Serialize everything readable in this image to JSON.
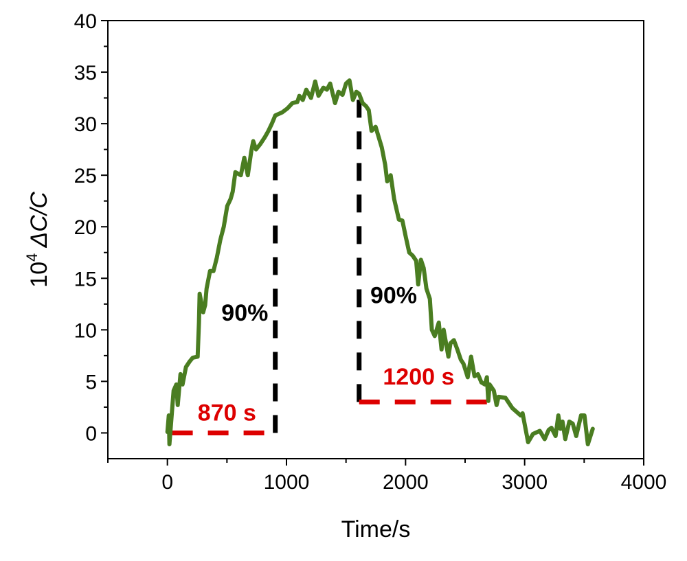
{
  "chart_data": {
    "type": "line",
    "title": "",
    "xlabel": "Time/s",
    "ylabel_prefix": "10",
    "ylabel_exp": "4",
    "ylabel_main": " ΔC/C",
    "xlim": [
      -500,
      4000
    ],
    "ylim": [
      -2.5,
      40
    ],
    "xticks": [
      0,
      1000,
      2000,
      3000,
      4000
    ],
    "xticks_minor": [
      -500,
      500,
      1500,
      2500,
      3500
    ],
    "yticks": [
      0,
      5,
      10,
      15,
      20,
      25,
      30,
      35,
      40
    ],
    "yticks_minor": [
      2.5,
      7.5,
      12.5,
      17.5,
      22.5,
      27.5,
      32.5,
      37.5
    ],
    "grid": false,
    "series": [
      {
        "name": "response",
        "color": "#4a7d21",
        "x": [
          0,
          12,
          17,
          52,
          75,
          87,
          110,
          127,
          156,
          185,
          213,
          254,
          265,
          271,
          300,
          317,
          329,
          358,
          387,
          415,
          444,
          473,
          502,
          531,
          548,
          571,
          617,
          646,
          675,
          704,
          721,
          744,
          779,
          819,
          848,
          877,
          906,
          964,
          1010,
          1050,
          1091,
          1108,
          1137,
          1166,
          1206,
          1241,
          1269,
          1310,
          1339,
          1367,
          1408,
          1437,
          1471,
          1500,
          1529,
          1558,
          1587,
          1610,
          1639,
          1668,
          1691,
          1714,
          1748,
          1800,
          1829,
          1846,
          1875,
          1904,
          1944,
          1973,
          2002,
          2031,
          2060,
          2089,
          2106,
          2129,
          2152,
          2175,
          2204,
          2221,
          2245,
          2279,
          2302,
          2320,
          2360,
          2377,
          2406,
          2435,
          2464,
          2487,
          2522,
          2550,
          2579,
          2608,
          2637,
          2666,
          2683,
          2695,
          2706,
          2741,
          2764,
          2781,
          2839,
          2897,
          2966,
          2983,
          3029,
          3070,
          3127,
          3168,
          3202,
          3225,
          3260,
          3283,
          3300,
          3318,
          3341,
          3375,
          3404,
          3433,
          3474,
          3502,
          3531,
          3572
        ],
        "y": [
          0.1,
          1.7,
          -1.1,
          4.1,
          4.7,
          2.7,
          5.7,
          4.7,
          6.4,
          6.9,
          7.3,
          7.4,
          10.7,
          13.5,
          11.7,
          12.4,
          14.0,
          15.7,
          15.7,
          17.0,
          18.7,
          20.0,
          22.0,
          22.7,
          23.4,
          25.3,
          25.0,
          26.7,
          25.0,
          27.3,
          28.3,
          27.5,
          28.0,
          28.7,
          29.3,
          30.0,
          30.8,
          31.1,
          31.5,
          32.0,
          32.1,
          32.7,
          32.3,
          33.3,
          32.5,
          34.1,
          32.7,
          33.5,
          33.3,
          33.9,
          32.0,
          33.1,
          32.8,
          33.9,
          34.2,
          32.3,
          33.1,
          32.9,
          32.0,
          31.7,
          31.3,
          29.3,
          29.7,
          27.7,
          26.0,
          24.4,
          25.0,
          22.7,
          20.7,
          20.6,
          19.0,
          17.5,
          17.2,
          16.7,
          14.4,
          16.8,
          16.0,
          14.0,
          13.0,
          10.0,
          9.4,
          10.7,
          8.1,
          10.0,
          7.4,
          8.7,
          9.0,
          8.1,
          7.1,
          6.7,
          5.4,
          7.4,
          5.5,
          5.7,
          4.9,
          4.7,
          5.4,
          3.1,
          4.7,
          4.1,
          2.7,
          3.5,
          3.4,
          2.4,
          1.7,
          1.9,
          -0.9,
          -0.1,
          0.2,
          -0.6,
          0.3,
          0.5,
          -0.3,
          1.7,
          0.4,
          1.1,
          -0.6,
          1.1,
          0.9,
          -0.3,
          1.7,
          1.7,
          -1.1,
          0.4
        ]
      }
    ],
    "annotations": {
      "vlines": [
        {
          "x": 906,
          "y0": 0,
          "y1": 30,
          "color": "#000000"
        },
        {
          "x": 1610,
          "y0": 3,
          "y1": 32.5,
          "color": "#000000"
        }
      ],
      "hlines": [
        {
          "y": 0,
          "x0": 40,
          "x1": 895,
          "color": "#dd0000"
        },
        {
          "y": 3,
          "x0": 1610,
          "x1": 2695,
          "color": "#dd0000"
        }
      ],
      "labels": [
        {
          "text": "90%",
          "x": 650,
          "y": 10.9,
          "color": "#000000"
        },
        {
          "text": "90%",
          "x": 1900,
          "y": 12.6,
          "color": "#000000"
        },
        {
          "text": "870 s",
          "x": 500,
          "y": 1.2,
          "color": "#dd0000"
        },
        {
          "text": "1200 s",
          "x": 2110,
          "y": 4.7,
          "color": "#dd0000"
        }
      ]
    }
  }
}
